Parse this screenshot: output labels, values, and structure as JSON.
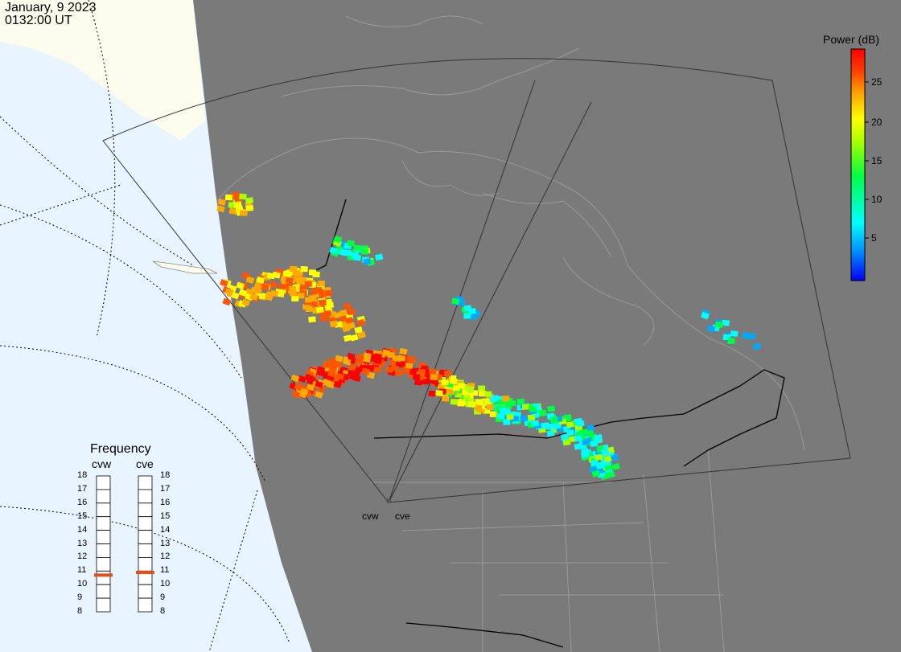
{
  "header": {
    "date": "January, 9 2023",
    "time": "0132:00 UT"
  },
  "colorbar": {
    "title": "Power (dB)",
    "range": [
      0,
      29
    ],
    "ticks": [
      "25",
      "20",
      "15",
      "10",
      "5"
    ],
    "colors": [
      "#0000ff",
      "#00aaff",
      "#00ffff",
      "#00ff44",
      "#aaff00",
      "#ffff00",
      "#ffaa00",
      "#ff5500",
      "#ff0000"
    ]
  },
  "frequency_panel": {
    "title": "Frequency",
    "radars": [
      {
        "name": "cvw",
        "selected_mhz": 10.7
      },
      {
        "name": "cve",
        "selected_mhz": 10.9
      }
    ],
    "scale": [
      "18",
      "17",
      "16",
      "15",
      "14",
      "13",
      "12",
      "11",
      "10",
      "9",
      "8"
    ],
    "marker_color": "#e0501a"
  },
  "sites": [
    {
      "label": "cvw"
    },
    {
      "label": "cve"
    }
  ],
  "map_colors": {
    "land": "#7a7a7a",
    "ocean": "#e8f4ff",
    "sunlit_land": "#fcfcec",
    "borders": "#9a9a9a"
  }
}
